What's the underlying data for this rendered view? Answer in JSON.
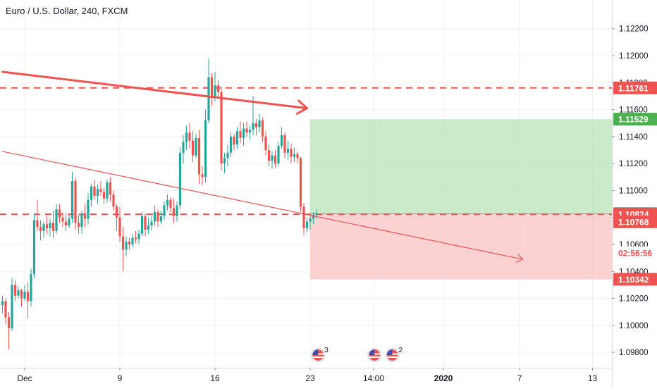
{
  "header": {
    "title": "Euro / U.S. Dollar, 240, FXCM"
  },
  "colors": {
    "up": "#26a69a",
    "down": "#ef5350",
    "line": "#ef5350",
    "profit_zone": "#b7e4b4",
    "loss_zone": "#f9c2c2",
    "price_tag_dark": "#4a4e5a",
    "grid": "#eef0f3",
    "axis_text": "#131722"
  },
  "chart_data": {
    "type": "candlestick",
    "title": "Euro / U.S. Dollar, 240, FXCM",
    "ylim": [
      1.0955,
      1.1235
    ],
    "y_ticks": [
      1.098,
      1.1,
      1.102,
      1.104,
      1.106,
      1.108,
      1.11,
      1.112,
      1.114,
      1.116,
      1.118,
      1.12,
      1.122
    ],
    "y_tick_labels": [
      "1.09800",
      "1.10000",
      "1.10200",
      "1.10400",
      "1.10600",
      "1.10800",
      "1.11000",
      "1.11200",
      "1.11400",
      "1.11600",
      "1.11800",
      "1.12000",
      "1.12200"
    ],
    "x_ticks": [
      {
        "label": "Dec",
        "bar": 7
      },
      {
        "label": "9",
        "bar": 37
      },
      {
        "label": "16",
        "bar": 67
      },
      {
        "label": "23",
        "bar": 97
      },
      {
        "label": "14:00",
        "bar": 117
      },
      {
        "label": "2020",
        "bar": 139
      },
      {
        "label": "7",
        "bar": 163
      },
      {
        "label": "13",
        "bar": 186
      }
    ],
    "horizontal_lines": [
      1.11761,
      1.10824
    ],
    "price_labels": [
      {
        "value": "1.11761",
        "y": 1.11761,
        "style": "red"
      },
      {
        "value": "1.11529",
        "y": 1.11529,
        "style": "green"
      },
      {
        "value": "1.10827",
        "y": 1.10827,
        "style": "dark"
      },
      {
        "value": "1.10824",
        "y": 1.10824,
        "style": "red"
      },
      {
        "value": "02:56:56",
        "y": 1.10538,
        "style": "countdown"
      },
      {
        "value": "1.10768",
        "y": 1.10768,
        "style": "red"
      },
      {
        "value": "1.10342",
        "y": 1.10342,
        "style": "red"
      }
    ],
    "position_tool": {
      "bar_start": 97,
      "bar_end": 193,
      "entry": 1.10827,
      "target": 1.11529,
      "stop": 1.10342
    },
    "trend_lines": [
      {
        "from": [
          0,
          1.1188
        ],
        "to": [
          96,
          1.1161
        ],
        "style": "bold",
        "arrow": true
      },
      {
        "from": [
          0,
          1.1129
        ],
        "to": [
          164,
          1.1049
        ],
        "style": "thin",
        "arrow": true
      }
    ],
    "event_icons": [
      {
        "bar": 99.5,
        "badge": "3"
      },
      {
        "bar": 117.3,
        "badge": ""
      },
      {
        "bar": 122.9,
        "badge": "2"
      }
    ],
    "candles": [
      [
        1.1015,
        1.1022,
        1.1009,
        1.1018
      ],
      [
        1.1018,
        1.102,
        1.1001,
        1.1006
      ],
      [
        1.1006,
        1.101,
        1.0982,
        1.0998
      ],
      [
        1.0998,
        1.1035,
        1.0996,
        1.103
      ],
      [
        1.103,
        1.1033,
        1.1018,
        1.1022
      ],
      [
        1.1022,
        1.1029,
        1.102,
        1.1026
      ],
      [
        1.1026,
        1.1027,
        1.1014,
        1.102
      ],
      [
        1.102,
        1.103,
        1.1018,
        1.1025
      ],
      [
        1.1025,
        1.1032,
        1.1005,
        1.1018
      ],
      [
        1.1018,
        1.1042,
        1.1014,
        1.1038
      ],
      [
        1.1038,
        1.1083,
        1.1035,
        1.1078
      ],
      [
        1.1078,
        1.1093,
        1.107,
        1.1073
      ],
      [
        1.1073,
        1.1078,
        1.1063,
        1.107
      ],
      [
        1.107,
        1.1077,
        1.1065,
        1.1075
      ],
      [
        1.1075,
        1.1081,
        1.1068,
        1.1072
      ],
      [
        1.1072,
        1.1079,
        1.1066,
        1.1076
      ],
      [
        1.1076,
        1.1085,
        1.1065,
        1.107
      ],
      [
        1.107,
        1.109,
        1.1068,
        1.1086
      ],
      [
        1.1086,
        1.109,
        1.1076,
        1.108
      ],
      [
        1.108,
        1.1084,
        1.1073,
        1.1077
      ],
      [
        1.1077,
        1.1083,
        1.107,
        1.1074
      ],
      [
        1.1074,
        1.1082,
        1.1072,
        1.1079
      ],
      [
        1.1079,
        1.1114,
        1.1076,
        1.1107
      ],
      [
        1.1107,
        1.111,
        1.1071,
        1.1076
      ],
      [
        1.1076,
        1.1082,
        1.1068,
        1.1073
      ],
      [
        1.1073,
        1.1085,
        1.1068,
        1.1083
      ],
      [
        1.1083,
        1.109,
        1.1073,
        1.1079
      ],
      [
        1.1079,
        1.1098,
        1.1075,
        1.1093
      ],
      [
        1.1093,
        1.1105,
        1.1088,
        1.1103
      ],
      [
        1.1103,
        1.1108,
        1.1093,
        1.1096
      ],
      [
        1.1096,
        1.1104,
        1.109,
        1.1101
      ],
      [
        1.1101,
        1.1107,
        1.1096,
        1.1099
      ],
      [
        1.1099,
        1.1102,
        1.109,
        1.1094
      ],
      [
        1.1094,
        1.1108,
        1.1091,
        1.1106
      ],
      [
        1.1106,
        1.111,
        1.1092,
        1.1097
      ],
      [
        1.1097,
        1.11,
        1.1085,
        1.1088
      ],
      [
        1.1088,
        1.109,
        1.107,
        1.108
      ],
      [
        1.108,
        1.1088,
        1.1062,
        1.1066
      ],
      [
        1.1066,
        1.1073,
        1.104,
        1.1056
      ],
      [
        1.1056,
        1.1066,
        1.1051,
        1.1062
      ],
      [
        1.1062,
        1.1065,
        1.1056,
        1.106
      ],
      [
        1.106,
        1.1068,
        1.1058,
        1.1065
      ],
      [
        1.1065,
        1.107,
        1.1061,
        1.1064
      ],
      [
        1.1064,
        1.1071,
        1.106,
        1.1068
      ],
      [
        1.1068,
        1.1084,
        1.1066,
        1.1081
      ],
      [
        1.1081,
        1.1083,
        1.1066,
        1.1071
      ],
      [
        1.1071,
        1.108,
        1.1068,
        1.1074
      ],
      [
        1.1074,
        1.1081,
        1.107,
        1.1077
      ],
      [
        1.1077,
        1.1089,
        1.1074,
        1.1084
      ],
      [
        1.1084,
        1.1086,
        1.1073,
        1.1077
      ],
      [
        1.1077,
        1.1085,
        1.1075,
        1.1081
      ],
      [
        1.1081,
        1.1092,
        1.1078,
        1.1089
      ],
      [
        1.1089,
        1.1097,
        1.1085,
        1.1093
      ],
      [
        1.1093,
        1.1095,
        1.1084,
        1.1087
      ],
      [
        1.1087,
        1.1094,
        1.1076,
        1.1081
      ],
      [
        1.1081,
        1.1092,
        1.1077,
        1.1089
      ],
      [
        1.1089,
        1.1132,
        1.1086,
        1.1128
      ],
      [
        1.1128,
        1.1141,
        1.112,
        1.1136
      ],
      [
        1.1136,
        1.1148,
        1.113,
        1.1143
      ],
      [
        1.1143,
        1.115,
        1.1131,
        1.1137
      ],
      [
        1.1137,
        1.1144,
        1.1121,
        1.1126
      ],
      [
        1.1126,
        1.1142,
        1.1124,
        1.1139
      ],
      [
        1.1139,
        1.1145,
        1.1105,
        1.1112
      ],
      [
        1.1112,
        1.1118,
        1.1104,
        1.111
      ],
      [
        1.111,
        1.116,
        1.1106,
        1.1152
      ],
      [
        1.1152,
        1.1198,
        1.115,
        1.1184
      ],
      [
        1.1184,
        1.1187,
        1.1163,
        1.117
      ],
      [
        1.117,
        1.1188,
        1.1166,
        1.1178
      ],
      [
        1.1178,
        1.1182,
        1.1169,
        1.1173
      ],
      [
        1.1173,
        1.1177,
        1.1115,
        1.112
      ],
      [
        1.112,
        1.1128,
        1.1113,
        1.1124
      ],
      [
        1.1124,
        1.1134,
        1.1118,
        1.1128
      ],
      [
        1.1128,
        1.1143,
        1.1125,
        1.114
      ],
      [
        1.114,
        1.1142,
        1.113,
        1.1134
      ],
      [
        1.1134,
        1.1147,
        1.1131,
        1.1144
      ],
      [
        1.1144,
        1.1151,
        1.1135,
        1.1139
      ],
      [
        1.1139,
        1.115,
        1.1133,
        1.1146
      ],
      [
        1.1146,
        1.1151,
        1.114,
        1.1143
      ],
      [
        1.1143,
        1.1148,
        1.1138,
        1.1145
      ],
      [
        1.1145,
        1.117,
        1.1141,
        1.115
      ],
      [
        1.115,
        1.1153,
        1.1141,
        1.1147
      ],
      [
        1.1147,
        1.1157,
        1.1143,
        1.1152
      ],
      [
        1.1152,
        1.1154,
        1.1136,
        1.114
      ],
      [
        1.114,
        1.1144,
        1.1126,
        1.113
      ],
      [
        1.113,
        1.1134,
        1.1118,
        1.1122
      ],
      [
        1.1122,
        1.1129,
        1.1116,
        1.1126
      ],
      [
        1.1126,
        1.113,
        1.1117,
        1.112
      ],
      [
        1.112,
        1.1136,
        1.1118,
        1.1133
      ],
      [
        1.1133,
        1.1147,
        1.1131,
        1.1141
      ],
      [
        1.1141,
        1.1143,
        1.1124,
        1.1128
      ],
      [
        1.1128,
        1.1137,
        1.1123,
        1.1131
      ],
      [
        1.1131,
        1.1135,
        1.112,
        1.1125
      ],
      [
        1.1125,
        1.1132,
        1.1121,
        1.1127
      ],
      [
        1.1127,
        1.1129,
        1.112,
        1.1124
      ],
      [
        1.1124,
        1.1125,
        1.1084,
        1.1088
      ],
      [
        1.1088,
        1.1091,
        1.1067,
        1.1072
      ],
      [
        1.1072,
        1.108,
        1.1069,
        1.1077
      ],
      [
        1.1077,
        1.1082,
        1.1071,
        1.1079
      ],
      [
        1.1079,
        1.1084,
        1.1075,
        1.1082
      ],
      [
        1.1082,
        1.1086,
        1.1079,
        1.1083
      ]
    ]
  }
}
